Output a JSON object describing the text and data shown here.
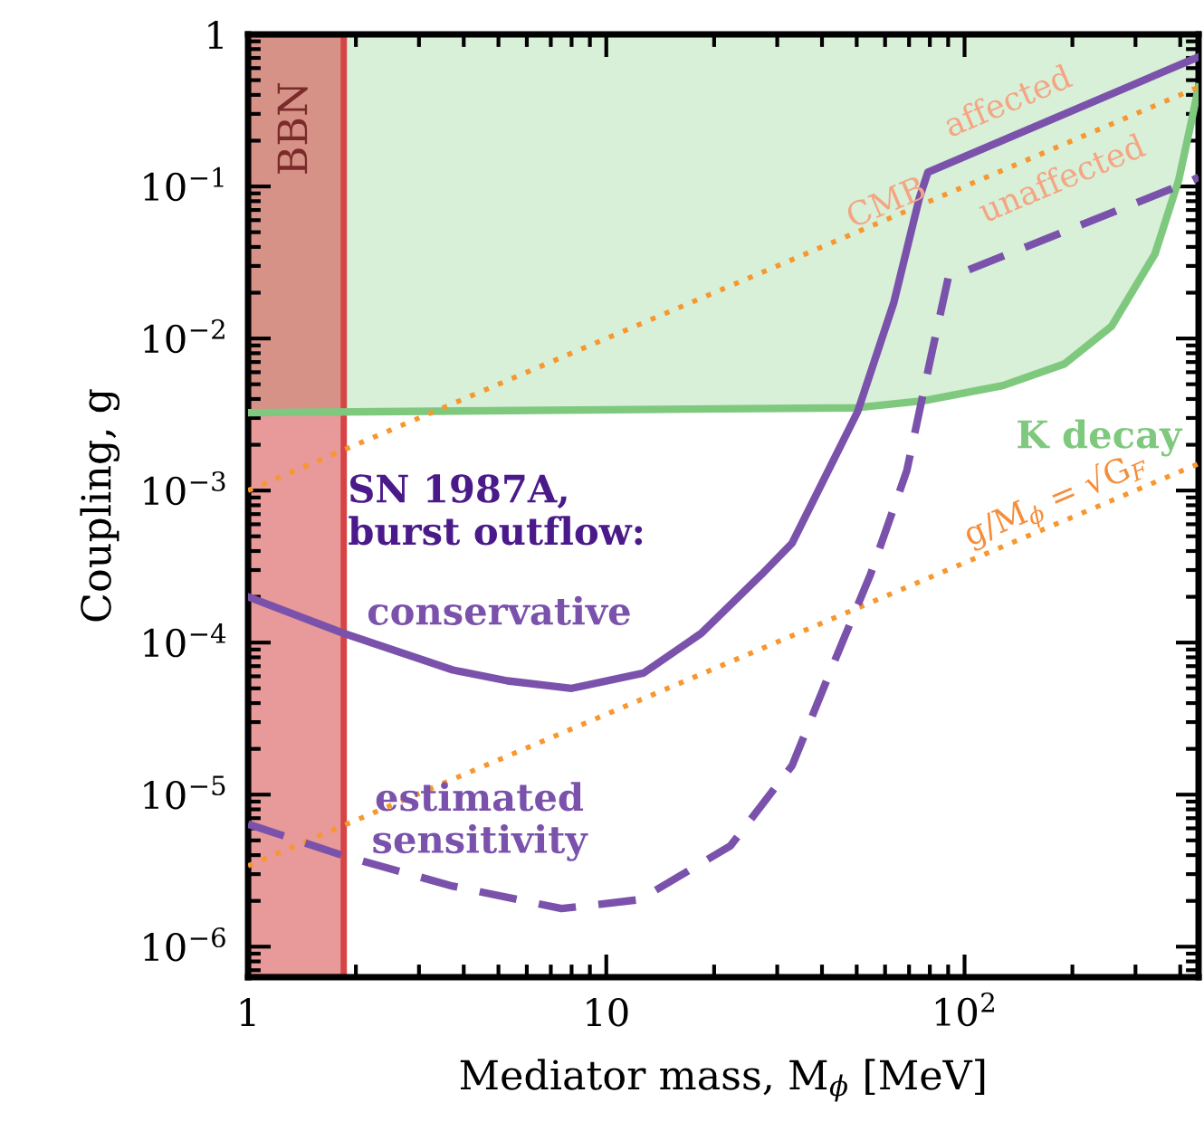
{
  "chart_data": {
    "type": "line",
    "xlabel": "Mediator mass, M$_{ϕ}$ [MeV]",
    "ylabel": "Coupling, g",
    "log": "xy",
    "xlim": [
      1,
      450
    ],
    "ylim": [
      6.3e-07,
      1
    ],
    "xticks": [
      1,
      10,
      {
        "value": 100,
        "label": "10$^{2}$"
      }
    ],
    "yticks": [
      {
        "value": 1e-06,
        "label": "10$^{−6}$"
      },
      {
        "value": 1e-05,
        "label": "10$^{−5}$"
      },
      {
        "value": 0.0001,
        "label": "10$^{−4}$"
      },
      {
        "value": 0.001,
        "label": "10$^{−3}$"
      },
      {
        "value": 0.01,
        "label": "10$^{−2}$"
      },
      {
        "value": 0.1,
        "label": "10$^{−1}$"
      },
      1
    ],
    "grid": false,
    "legend": false,
    "series": [
      {
        "name": "K decay",
        "color": "#7fc97f",
        "x": [
          1,
          50,
          77,
          128,
          190,
          257,
          340,
          396,
          430,
          450
        ],
        "values": [
          0.00325,
          0.0035,
          0.0039,
          0.0049,
          0.0068,
          0.012,
          0.036,
          0.11,
          0.27,
          0.45
        ]
      },
      {
        "name": "CMB",
        "line_style": "dotted",
        "color": "#f7972e",
        "x": [
          1,
          450
        ],
        "values": [
          0.001,
          0.45
        ]
      },
      {
        "name": "g/M$_{ϕ}$ = √G$_{F}$",
        "line_style": "dotted",
        "color": "#f7972e",
        "x": [
          1,
          450
        ],
        "values": [
          3.4e-06,
          0.0015
        ]
      },
      {
        "name": "conservative",
        "line_style": "solid",
        "color": "#7b52ab",
        "x": [
          1,
          1.85,
          3.73,
          5.3,
          8.0,
          12.7,
          18.4,
          27.1,
          33,
          50.3,
          63.5,
          74.7,
          79,
          430,
          450
        ],
        "values": [
          0.0002,
          0.000115,
          6.6e-05,
          5.6e-05,
          5e-05,
          6.3e-05,
          0.000115,
          0.00028,
          0.00045,
          0.0033,
          0.0173,
          0.083,
          0.124,
          0.68,
          0.71
        ]
      },
      {
        "name": "estimated\nsensitivity",
        "line_style": "dashed",
        "color": "#7b52ab",
        "x": [
          1,
          1.85,
          3.73,
          7.5,
          12.4,
          22.2,
          33,
          43,
          54.6,
          69,
          80,
          90,
          430,
          450
        ],
        "values": [
          6.4e-06,
          3.96e-06,
          2.5e-06,
          1.78e-06,
          2.04e-06,
          4.6e-06,
          1.55e-05,
          7.2e-05,
          0.00028,
          0.00135,
          0.007,
          0.025,
          0.109,
          0.115
        ]
      }
    ],
    "bands": [
      {
        "axis": "x",
        "from": 1,
        "to": 1.85,
        "label": "BBN",
        "color": "#d64545"
      }
    ],
    "annotations": [
      "SN 1987A,\nburst outflow:",
      "affected",
      "unaffected"
    ]
  }
}
